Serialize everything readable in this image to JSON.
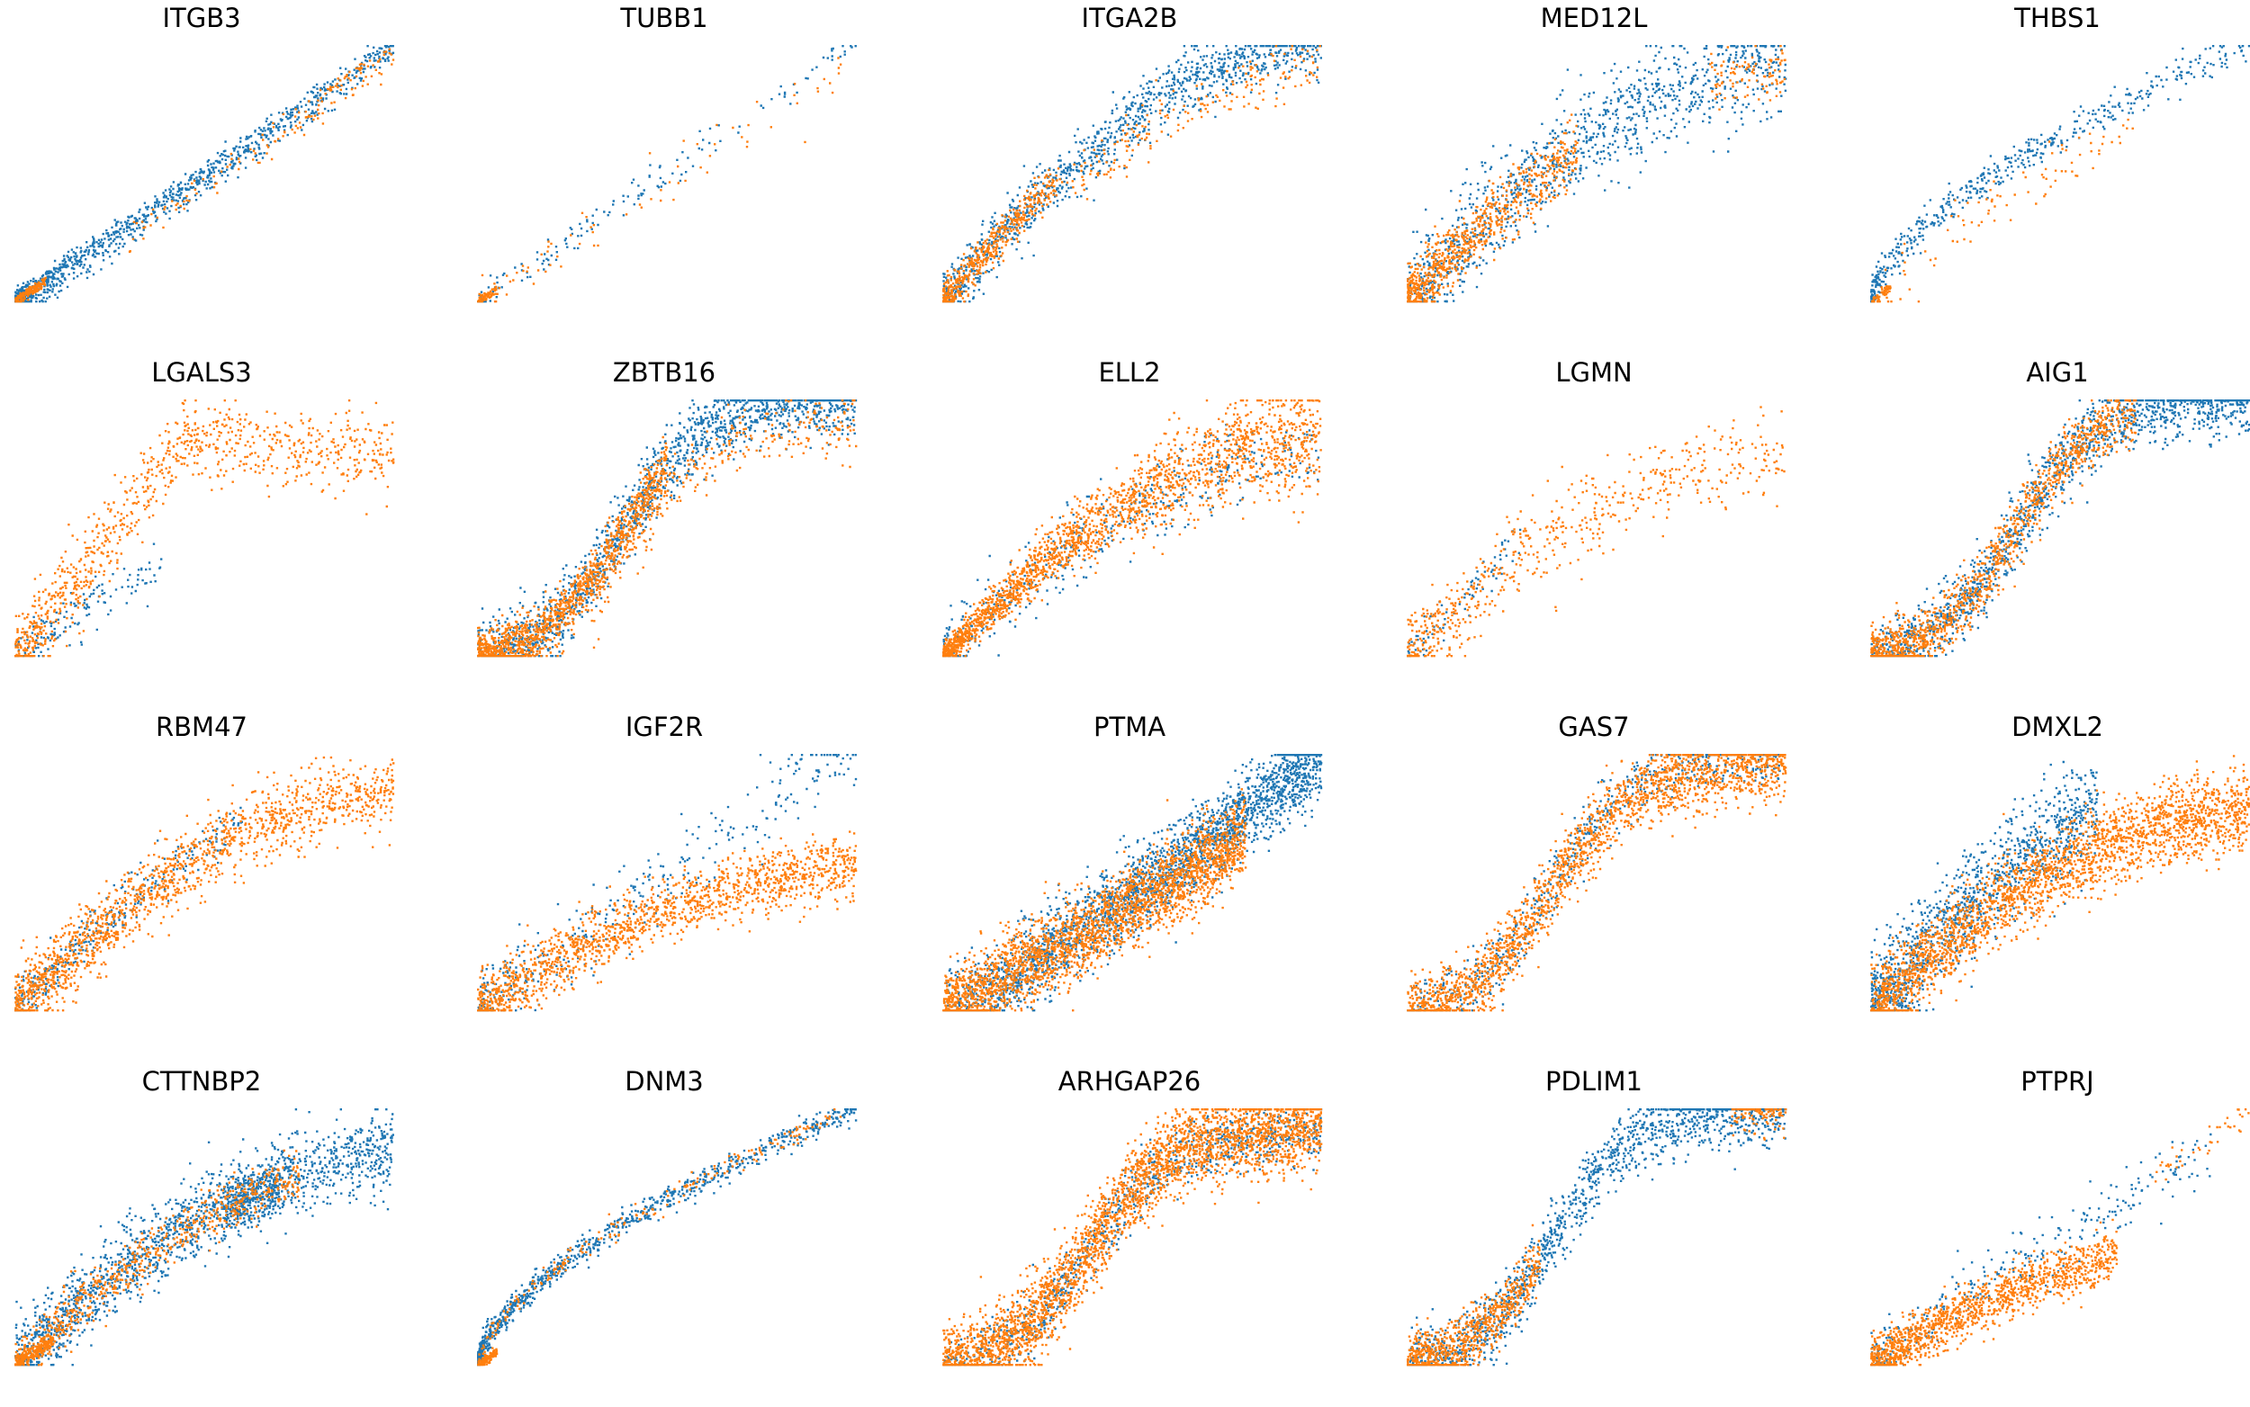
{
  "colors": {
    "blue": "#1f77b4",
    "orange": "#ff7f0e"
  },
  "chart_data": [
    {
      "type": "scatter",
      "title": "ITGB3",
      "axes": "off",
      "series_colors": [
        "#1f77b4",
        "#ff7f0e"
      ]
    },
    {
      "type": "scatter",
      "title": "TUBB1",
      "axes": "off",
      "series_colors": [
        "#1f77b4",
        "#ff7f0e"
      ]
    },
    {
      "type": "scatter",
      "title": "ITGA2B",
      "axes": "off",
      "series_colors": [
        "#1f77b4",
        "#ff7f0e"
      ]
    },
    {
      "type": "scatter",
      "title": "MED12L",
      "axes": "off",
      "series_colors": [
        "#1f77b4",
        "#ff7f0e"
      ]
    },
    {
      "type": "scatter",
      "title": "THBS1",
      "axes": "off",
      "series_colors": [
        "#1f77b4",
        "#ff7f0e"
      ]
    },
    {
      "type": "scatter",
      "title": "LGALS3",
      "axes": "off",
      "series_colors": [
        "#1f77b4",
        "#ff7f0e"
      ]
    },
    {
      "type": "scatter",
      "title": "ZBTB16",
      "axes": "off",
      "series_colors": [
        "#1f77b4",
        "#ff7f0e"
      ]
    },
    {
      "type": "scatter",
      "title": "ELL2",
      "axes": "off",
      "series_colors": [
        "#1f77b4",
        "#ff7f0e"
      ]
    },
    {
      "type": "scatter",
      "title": "LGMN",
      "axes": "off",
      "series_colors": [
        "#1f77b4",
        "#ff7f0e"
      ]
    },
    {
      "type": "scatter",
      "title": "AIG1",
      "axes": "off",
      "series_colors": [
        "#1f77b4",
        "#ff7f0e"
      ]
    },
    {
      "type": "scatter",
      "title": "RBM47",
      "axes": "off",
      "series_colors": [
        "#1f77b4",
        "#ff7f0e"
      ]
    },
    {
      "type": "scatter",
      "title": "IGF2R",
      "axes": "off",
      "series_colors": [
        "#1f77b4",
        "#ff7f0e"
      ]
    },
    {
      "type": "scatter",
      "title": "PTMA",
      "axes": "off",
      "series_colors": [
        "#1f77b4",
        "#ff7f0e"
      ]
    },
    {
      "type": "scatter",
      "title": "GAS7",
      "axes": "off",
      "series_colors": [
        "#1f77b4",
        "#ff7f0e"
      ]
    },
    {
      "type": "scatter",
      "title": "DMXL2",
      "axes": "off",
      "series_colors": [
        "#1f77b4",
        "#ff7f0e"
      ]
    },
    {
      "type": "scatter",
      "title": "CTTNBP2",
      "axes": "off",
      "series_colors": [
        "#1f77b4",
        "#ff7f0e"
      ]
    },
    {
      "type": "scatter",
      "title": "DNM3",
      "axes": "off",
      "series_colors": [
        "#1f77b4",
        "#ff7f0e"
      ]
    },
    {
      "type": "scatter",
      "title": "ARHGAP26",
      "axes": "off",
      "series_colors": [
        "#1f77b4",
        "#ff7f0e"
      ]
    },
    {
      "type": "scatter",
      "title": "PDLIM1",
      "axes": "off",
      "series_colors": [
        "#1f77b4",
        "#ff7f0e"
      ]
    },
    {
      "type": "scatter",
      "title": "PTPRJ",
      "axes": "off",
      "series_colors": [
        "#1f77b4",
        "#ff7f0e"
      ]
    }
  ]
}
